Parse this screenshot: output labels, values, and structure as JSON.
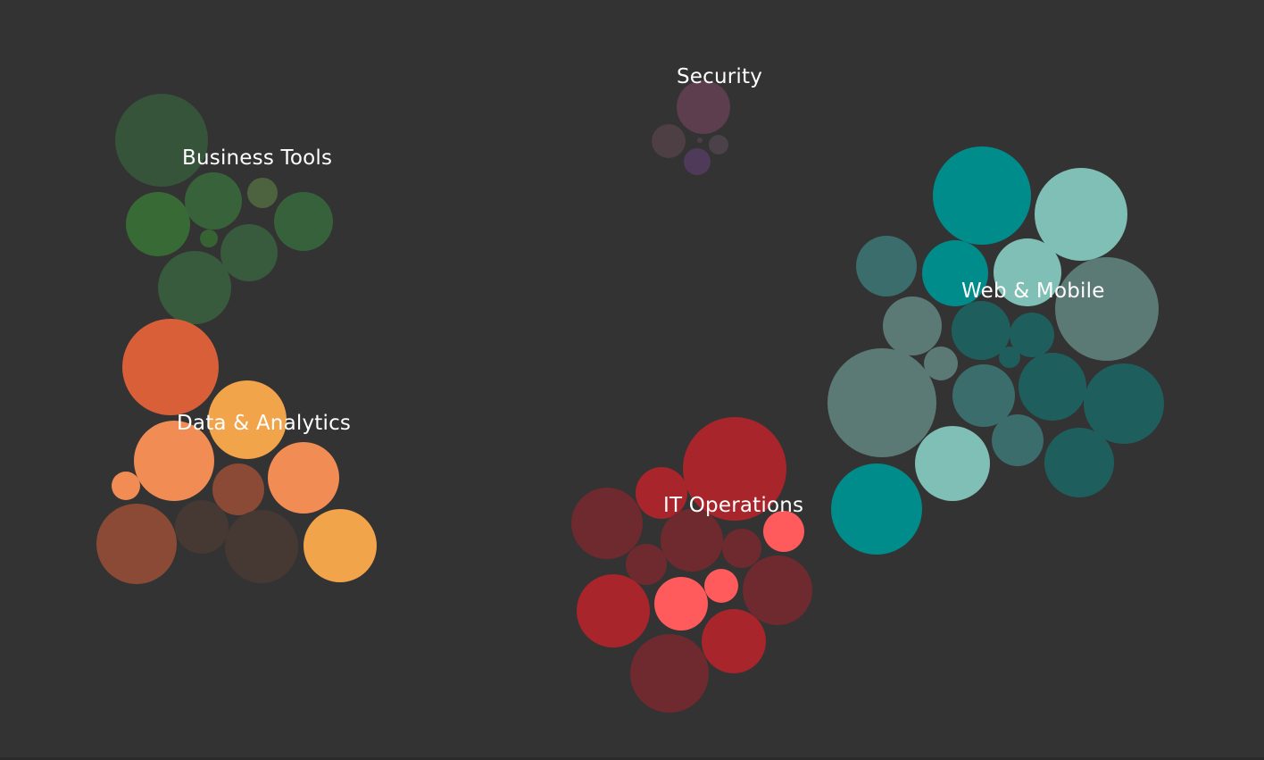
{
  "chart_data": {
    "type": "bubble-cluster",
    "title": "",
    "groups": [
      {
        "name": "Security",
        "bubbles": [
          {
            "size": 30,
            "color": "#5c3e4f"
          },
          {
            "size": 19,
            "color": "#4e3f45"
          },
          {
            "size": 11,
            "color": "#4a4248"
          },
          {
            "size": 15,
            "color": "#4f3a5a"
          },
          {
            "size": 3,
            "color": "#4a3f45"
          }
        ]
      },
      {
        "name": "Business Tools",
        "bubbles": [
          {
            "size": 52,
            "color": "#36543a"
          },
          {
            "size": 32,
            "color": "#38633a"
          },
          {
            "size": 17,
            "color": "#4d6340"
          },
          {
            "size": 36,
            "color": "#386a36"
          },
          {
            "size": 33,
            "color": "#37613a"
          },
          {
            "size": 10,
            "color": "#376333"
          },
          {
            "size": 32,
            "color": "#385a3d"
          },
          {
            "size": 41,
            "color": "#385a3d"
          }
        ]
      },
      {
        "name": "Data & Analytics",
        "bubbles": [
          {
            "size": 54,
            "color": "#d95f38"
          },
          {
            "size": 44,
            "color": "#f2a44b"
          },
          {
            "size": 45,
            "color": "#f28c55"
          },
          {
            "size": 16,
            "color": "#f28c55"
          },
          {
            "size": 29,
            "color": "#8a4a36"
          },
          {
            "size": 40,
            "color": "#f28c55"
          },
          {
            "size": 45,
            "color": "#8a4a36"
          },
          {
            "size": 30,
            "color": "#463833"
          },
          {
            "size": 41,
            "color": "#463833"
          },
          {
            "size": 41,
            "color": "#f2a44b"
          }
        ]
      },
      {
        "name": "IT Operations",
        "bubbles": [
          {
            "size": 58,
            "color": "#a8252b"
          },
          {
            "size": 29,
            "color": "#a8252b"
          },
          {
            "size": 40,
            "color": "#6e2a2e"
          },
          {
            "size": 23,
            "color": "#ff5a5c"
          },
          {
            "size": 35,
            "color": "#6e2a2e"
          },
          {
            "size": 22,
            "color": "#6e2a2e"
          },
          {
            "size": 23,
            "color": "#6e2a2e"
          },
          {
            "size": 41,
            "color": "#a8252b"
          },
          {
            "size": 30,
            "color": "#ff5a5c"
          },
          {
            "size": 19,
            "color": "#ff5a5c"
          },
          {
            "size": 39,
            "color": "#6e2a2e"
          },
          {
            "size": 36,
            "color": "#a8252b"
          },
          {
            "size": 44,
            "color": "#6e2a2e"
          }
        ]
      },
      {
        "name": "Web & Mobile",
        "bubbles": [
          {
            "size": 55,
            "color": "#008c8a"
          },
          {
            "size": 52,
            "color": "#7fbfb5"
          },
          {
            "size": 34,
            "color": "#3a6d6c"
          },
          {
            "size": 37,
            "color": "#008c8a"
          },
          {
            "size": 38,
            "color": "#7fbfb5"
          },
          {
            "size": 58,
            "color": "#5c7a75"
          },
          {
            "size": 33,
            "color": "#5c7a75"
          },
          {
            "size": 33,
            "color": "#1e5f5e"
          },
          {
            "size": 25,
            "color": "#1e5f5e"
          },
          {
            "size": 19,
            "color": "#5c7a75"
          },
          {
            "size": 12,
            "color": "#1e5f5e"
          },
          {
            "size": 61,
            "color": "#5c7a75"
          },
          {
            "size": 35,
            "color": "#3a6d6c"
          },
          {
            "size": 38,
            "color": "#1e5f5e"
          },
          {
            "size": 45,
            "color": "#1e5f5e"
          },
          {
            "size": 42,
            "color": "#7fbfb5"
          },
          {
            "size": 29,
            "color": "#3a6d6c"
          },
          {
            "size": 39,
            "color": "#1e5f5e"
          },
          {
            "size": 51,
            "color": "#008c8a"
          }
        ]
      }
    ]
  }
}
